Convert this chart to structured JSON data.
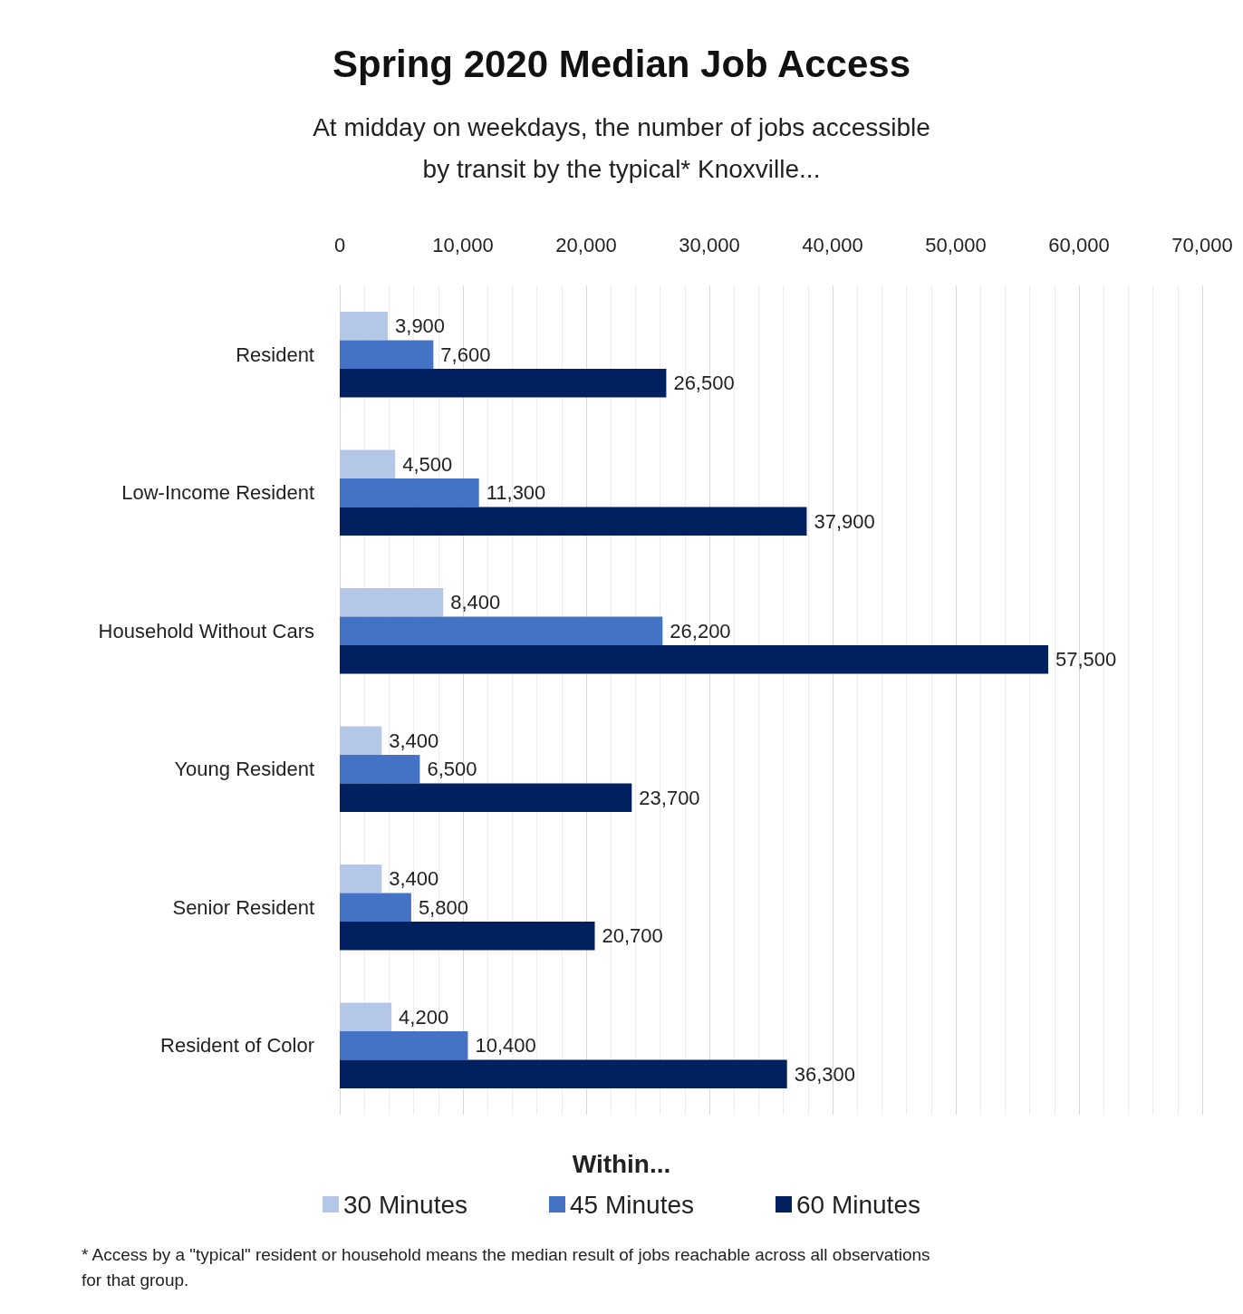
{
  "chart_data": {
    "type": "bar",
    "orientation": "horizontal",
    "title": "Spring 2020 Median Job Access",
    "subtitle": "At midday on weekdays, the number of jobs accessible\nby transit by the typical* Knoxville...",
    "categories": [
      "Resident",
      "Low-Income Resident",
      "Household Without Cars",
      "Young Resident",
      "Senior Resident",
      "Resident of Color"
    ],
    "series": [
      {
        "name": "30 Minutes",
        "color": "#b4c7e7",
        "values": [
          3900,
          4500,
          8400,
          3400,
          3400,
          4200
        ],
        "value_labels": [
          "3,900",
          "4,500",
          "8,400",
          "3,400",
          "3,400",
          "4,200"
        ]
      },
      {
        "name": "45 Minutes",
        "color": "#4472c4",
        "values": [
          7600,
          11300,
          26200,
          6500,
          5800,
          10400
        ],
        "value_labels": [
          "7,600",
          "11,300",
          "26,200",
          "6,500",
          "5,800",
          "10,400"
        ]
      },
      {
        "name": "60 Minutes",
        "color": "#002060",
        "values": [
          26500,
          37900,
          57500,
          23700,
          20700,
          36300
        ],
        "value_labels": [
          "26,500",
          "37,900",
          "57,500",
          "23,700",
          "20,700",
          "36,300"
        ]
      }
    ],
    "xlim": [
      0,
      70000
    ],
    "xticks": [
      0,
      {
        "value": 10000,
        "label": "10,000"
      },
      {
        "value": 20000,
        "label": "20,000"
      },
      {
        "value": 30000,
        "label": "30,000"
      },
      {
        "value": 40000,
        "label": "40,000"
      },
      {
        "value": 50000,
        "label": "50,000"
      },
      {
        "value": 60000,
        "label": "60,000"
      },
      {
        "value": 70000,
        "label": "70,000"
      }
    ],
    "grid": true,
    "legend": "bottom",
    "legend_title": "Within...",
    "annotations": [
      "* Access by a \"typical\" resident or household means the median result of jobs reachable across all observations\nfor that group."
    ]
  }
}
